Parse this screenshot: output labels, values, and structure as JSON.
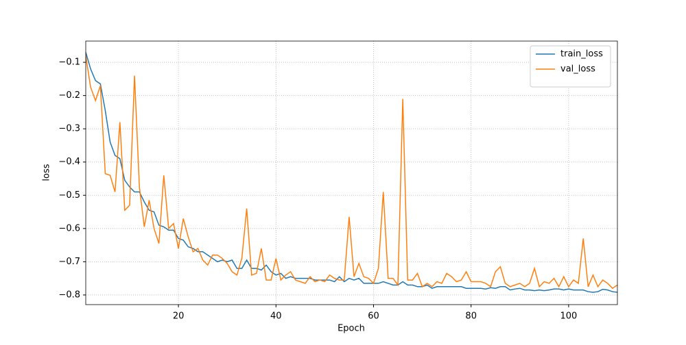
{
  "chart_data": {
    "type": "line",
    "xlabel": "Epoch",
    "ylabel": "loss",
    "x": [
      1,
      2,
      3,
      4,
      5,
      6,
      7,
      8,
      9,
      10,
      11,
      12,
      13,
      14,
      15,
      16,
      17,
      18,
      19,
      20,
      21,
      22,
      23,
      24,
      25,
      26,
      27,
      28,
      29,
      30,
      31,
      32,
      33,
      34,
      35,
      36,
      37,
      38,
      39,
      40,
      41,
      42,
      43,
      44,
      45,
      46,
      47,
      48,
      49,
      50,
      51,
      52,
      53,
      54,
      55,
      56,
      57,
      58,
      59,
      60,
      61,
      62,
      63,
      64,
      65,
      66,
      67,
      68,
      69,
      70,
      71,
      72,
      73,
      74,
      75,
      76,
      77,
      78,
      79,
      80,
      81,
      82,
      83,
      84,
      85,
      86,
      87,
      88,
      89,
      90,
      91,
      92,
      93,
      94,
      95,
      96,
      97,
      98,
      99,
      100,
      101,
      102,
      103,
      104,
      105,
      106,
      107,
      108,
      109,
      110
    ],
    "series": [
      {
        "name": "train_loss",
        "color": "#1f77b4",
        "values": [
          -0.07,
          -0.12,
          -0.155,
          -0.165,
          -0.245,
          -0.34,
          -0.38,
          -0.39,
          -0.455,
          -0.475,
          -0.49,
          -0.49,
          -0.52,
          -0.545,
          -0.55,
          -0.59,
          -0.595,
          -0.605,
          -0.605,
          -0.63,
          -0.635,
          -0.655,
          -0.66,
          -0.67,
          -0.67,
          -0.68,
          -0.69,
          -0.7,
          -0.695,
          -0.7,
          -0.695,
          -0.72,
          -0.72,
          -0.695,
          -0.72,
          -0.72,
          -0.725,
          -0.71,
          -0.73,
          -0.74,
          -0.735,
          -0.75,
          -0.745,
          -0.75,
          -0.75,
          -0.75,
          -0.75,
          -0.755,
          -0.755,
          -0.755,
          -0.755,
          -0.76,
          -0.745,
          -0.76,
          -0.75,
          -0.755,
          -0.75,
          -0.765,
          -0.765,
          -0.765,
          -0.765,
          -0.76,
          -0.765,
          -0.77,
          -0.77,
          -0.76,
          -0.77,
          -0.77,
          -0.775,
          -0.775,
          -0.77,
          -0.78,
          -0.775,
          -0.775,
          -0.775,
          -0.775,
          -0.775,
          -0.775,
          -0.78,
          -0.78,
          -0.78,
          -0.78,
          -0.782,
          -0.778,
          -0.78,
          -0.775,
          -0.775,
          -0.785,
          -0.782,
          -0.78,
          -0.785,
          -0.785,
          -0.787,
          -0.785,
          -0.787,
          -0.785,
          -0.782,
          -0.782,
          -0.785,
          -0.782,
          -0.785,
          -0.785,
          -0.785,
          -0.79,
          -0.792,
          -0.79,
          -0.783,
          -0.785,
          -0.79,
          -0.792
        ]
      },
      {
        "name": "val_loss",
        "color": "#ff7f0e",
        "values": [
          -0.08,
          -0.175,
          -0.215,
          -0.17,
          -0.435,
          -0.44,
          -0.49,
          -0.28,
          -0.545,
          -0.53,
          -0.14,
          -0.475,
          -0.595,
          -0.515,
          -0.6,
          -0.645,
          -0.44,
          -0.6,
          -0.585,
          -0.66,
          -0.57,
          -0.625,
          -0.67,
          -0.66,
          -0.695,
          -0.71,
          -0.68,
          -0.68,
          -0.69,
          -0.705,
          -0.73,
          -0.74,
          -0.69,
          -0.54,
          -0.74,
          -0.735,
          -0.66,
          -0.755,
          -0.755,
          -0.69,
          -0.755,
          -0.74,
          -0.73,
          -0.755,
          -0.76,
          -0.765,
          -0.745,
          -0.76,
          -0.755,
          -0.76,
          -0.74,
          -0.75,
          -0.755,
          -0.755,
          -0.565,
          -0.745,
          -0.705,
          -0.745,
          -0.75,
          -0.765,
          -0.72,
          -0.49,
          -0.75,
          -0.75,
          -0.77,
          -0.21,
          -0.755,
          -0.755,
          -0.735,
          -0.775,
          -0.765,
          -0.775,
          -0.76,
          -0.765,
          -0.735,
          -0.745,
          -0.76,
          -0.755,
          -0.73,
          -0.76,
          -0.76,
          -0.76,
          -0.765,
          -0.775,
          -0.73,
          -0.715,
          -0.765,
          -0.775,
          -0.77,
          -0.765,
          -0.775,
          -0.765,
          -0.72,
          -0.775,
          -0.76,
          -0.765,
          -0.75,
          -0.775,
          -0.745,
          -0.775,
          -0.755,
          -0.765,
          -0.63,
          -0.775,
          -0.74,
          -0.775,
          -0.755,
          -0.765,
          -0.78,
          -0.77
        ]
      }
    ],
    "xlim": [
      1,
      110
    ],
    "ylim": [
      -0.829,
      -0.036
    ],
    "xticks": [
      20,
      40,
      60,
      80,
      100
    ],
    "yticks": [
      {
        "value": -0.1,
        "label": "−0.1"
      },
      {
        "value": -0.2,
        "label": "−0.2"
      },
      {
        "value": -0.3,
        "label": "−0.3"
      },
      {
        "value": -0.4,
        "label": "−0.4"
      },
      {
        "value": -0.5,
        "label": "−0.5"
      },
      {
        "value": -0.6,
        "label": "−0.6"
      },
      {
        "value": -0.7,
        "label": "−0.7"
      },
      {
        "value": -0.8,
        "label": "−0.8"
      }
    ],
    "grid": true,
    "legend": "upper right"
  }
}
